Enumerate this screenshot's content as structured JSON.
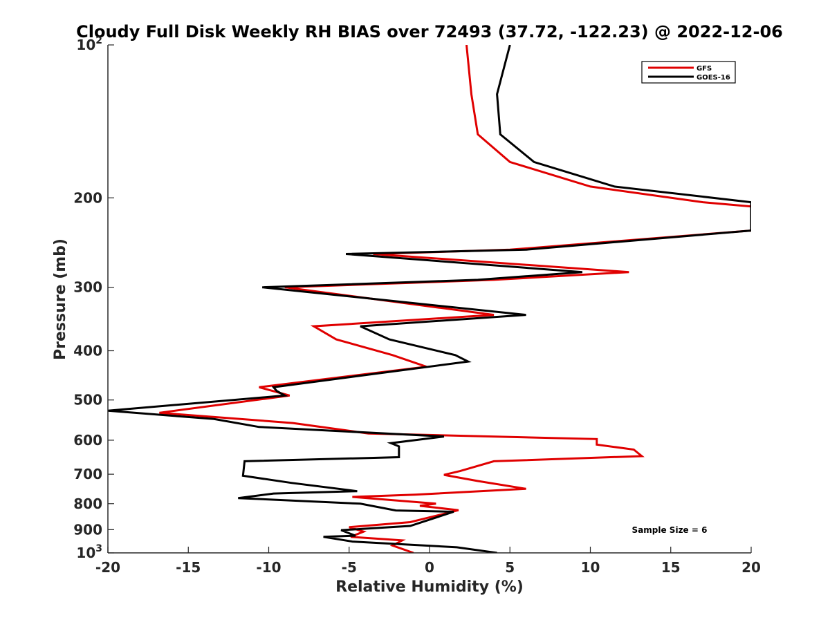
{
  "chart_data": {
    "type": "line",
    "title": "Cloudy Full Disk Weekly RH BIAS over 72493 (37.72, -122.23) @ 2022-12-06",
    "xlabel": "Relative Humidity (%)",
    "ylabel": "Pressure (mb)",
    "xlim": [
      -20,
      20
    ],
    "ylim": [
      100,
      1000
    ],
    "y_scale": "log",
    "y_reversed": true,
    "grid": false,
    "legend_position": "top-right",
    "x_ticks": [
      "-20",
      "-15",
      "-10",
      "-5",
      "0",
      "5",
      "10",
      "15",
      "20"
    ],
    "y_ticks": [
      {
        "value": 100,
        "base": "10",
        "exp": "2"
      },
      {
        "value": 200,
        "base": "200",
        "exp": ""
      },
      {
        "value": 300,
        "base": "300",
        "exp": ""
      },
      {
        "value": 400,
        "base": "400",
        "exp": ""
      },
      {
        "value": 500,
        "base": "500",
        "exp": ""
      },
      {
        "value": 600,
        "base": "600",
        "exp": ""
      },
      {
        "value": 700,
        "base": "700",
        "exp": ""
      },
      {
        "value": 800,
        "base": "800",
        "exp": ""
      },
      {
        "value": 900,
        "base": "900",
        "exp": ""
      },
      {
        "value": 1000,
        "base": "10",
        "exp": "3"
      }
    ],
    "series": [
      {
        "name": "GFS",
        "color": "#e00000",
        "points": [
          [
            2.3,
            100
          ],
          [
            2.6,
            125
          ],
          [
            3.0,
            150
          ],
          [
            5.0,
            170
          ],
          [
            10.0,
            190
          ],
          [
            17.0,
            204
          ],
          [
            20.0,
            208
          ],
          [
            20.0,
            232
          ],
          [
            5.0,
            253
          ],
          [
            -3.5,
            258
          ],
          [
            12.4,
            280
          ],
          [
            4.0,
            290
          ],
          [
            -9.0,
            300
          ],
          [
            4.0,
            340
          ],
          [
            -7.2,
            358
          ],
          [
            -5.8,
            380
          ],
          [
            -2.3,
            408
          ],
          [
            -0.2,
            430
          ],
          [
            -10.6,
            472
          ],
          [
            -8.7,
            490
          ],
          [
            -16.8,
            530
          ],
          [
            -8.5,
            555
          ],
          [
            -3.8,
            582
          ],
          [
            10.4,
            597
          ],
          [
            10.4,
            612
          ],
          [
            12.7,
            626
          ],
          [
            13.2,
            645
          ],
          [
            4.0,
            660
          ],
          [
            1.9,
            690
          ],
          [
            0.9,
            702
          ],
          [
            3.0,
            722
          ],
          [
            6.0,
            748
          ],
          [
            -0.9,
            768
          ],
          [
            -4.8,
            776
          ],
          [
            0.4,
            800
          ],
          [
            -0.6,
            808
          ],
          [
            1.8,
            824
          ],
          [
            -1.2,
            870
          ],
          [
            -5.0,
            890
          ],
          [
            -4.1,
            908
          ],
          [
            -4.9,
            930
          ],
          [
            -1.7,
            945
          ],
          [
            -2.3,
            967
          ],
          [
            -1.0,
            1000
          ]
        ]
      },
      {
        "name": "GOES-16",
        "color": "#000000",
        "points": [
          [
            5.0,
            100
          ],
          [
            4.2,
            125
          ],
          [
            4.4,
            150
          ],
          [
            6.5,
            170
          ],
          [
            11.5,
            190
          ],
          [
            20.0,
            204
          ],
          [
            20.0,
            232
          ],
          [
            6.0,
            253
          ],
          [
            -5.2,
            258
          ],
          [
            9.5,
            280
          ],
          [
            3.0,
            290
          ],
          [
            -10.4,
            300
          ],
          [
            6.0,
            340
          ],
          [
            -4.3,
            358
          ],
          [
            -2.5,
            380
          ],
          [
            1.6,
            408
          ],
          [
            2.4,
            420
          ],
          [
            -9.7,
            472
          ],
          [
            -9.5,
            480
          ],
          [
            -9.0,
            490
          ],
          [
            -20.0,
            525
          ],
          [
            -13.4,
            545
          ],
          [
            -10.6,
            565
          ],
          [
            0.9,
            590
          ],
          [
            -2.4,
            608
          ],
          [
            -1.9,
            617
          ],
          [
            -1.9,
            648
          ],
          [
            -11.5,
            660
          ],
          [
            -11.6,
            705
          ],
          [
            -8.6,
            728
          ],
          [
            -4.5,
            756
          ],
          [
            -9.7,
            764
          ],
          [
            -11.9,
            780
          ],
          [
            -4.3,
            800
          ],
          [
            -2.1,
            825
          ],
          [
            1.5,
            830
          ],
          [
            -1.2,
            885
          ],
          [
            -5.5,
            902
          ],
          [
            -4.6,
            925
          ],
          [
            -6.6,
            930
          ],
          [
            -4.8,
            950
          ],
          [
            1.7,
            975
          ],
          [
            4.2,
            1000
          ]
        ]
      }
    ],
    "annotation": "Sample Size = 6"
  }
}
